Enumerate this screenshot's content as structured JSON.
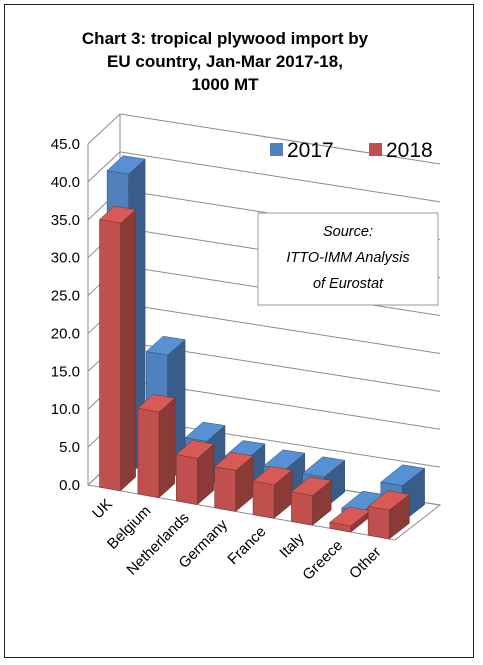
{
  "chart_data": {
    "type": "bar",
    "title_lines": [
      "Chart 3: tropical plywood import by",
      "EU country, Jan-Mar 2017-18,",
      "1000 MT"
    ],
    "categories": [
      "UK",
      "Belgium",
      "Netherlands",
      "Germany",
      "France",
      "Italy",
      "Greece",
      "Other"
    ],
    "series": [
      {
        "name": "2017",
        "values": [
          39.8,
          16.8,
          6.3,
          4.7,
          4.3,
          4.2,
          0.5,
          4.8
        ],
        "color": "#4f81bd"
      },
      {
        "name": "2018",
        "values": [
          35.3,
          11.3,
          6.1,
          5.4,
          4.4,
          3.9,
          0.8,
          3.8
        ],
        "color": "#c0504d"
      }
    ],
    "y_ticks": [
      "0.0",
      "5.0",
      "10.0",
      "15.0",
      "20.0",
      "25.0",
      "30.0",
      "35.0",
      "40.0",
      "45.0"
    ],
    "ylim": [
      0,
      45
    ],
    "grid": true,
    "legend_position": "top-right",
    "source_lines": [
      "Source:",
      "ITTO-IMM Analysis",
      "of Eurostat"
    ]
  }
}
